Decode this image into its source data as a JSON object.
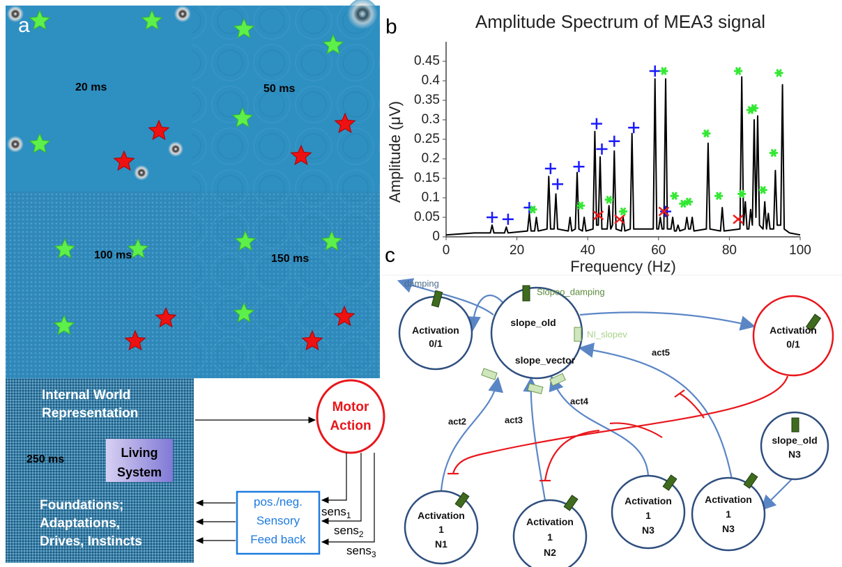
{
  "chart_data": {
    "type": "line",
    "panel_label": "b",
    "title": "Amplitude Spectrum of MEA3 signal",
    "xlabel": "Frequency (Hz)",
    "ylabel": "Amplitude (μV)",
    "xlim": [
      0,
      100
    ],
    "ylim": [
      0,
      0.5
    ],
    "xticks": [
      0,
      20,
      40,
      60,
      80,
      100
    ],
    "yticks": [
      0,
      0.05,
      0.1,
      0.15,
      0.2,
      0.25,
      0.3,
      0.35,
      0.4,
      0.45
    ],
    "x": [
      0,
      8,
      12.5,
      13,
      13.5,
      16.5,
      17,
      17.5,
      23,
      23.5,
      24,
      25,
      25.5,
      26,
      28.5,
      29,
      29.5,
      30.5,
      31,
      31.5,
      34.5,
      35,
      35.5,
      36.5,
      37,
      37.5,
      38.5,
      39,
      39.5,
      41.5,
      42,
      42.5,
      43,
      43.5,
      44,
      45.5,
      46,
      46.5,
      47,
      47.5,
      48,
      49.5,
      50,
      50.5,
      52,
      52.5,
      53,
      58.5,
      59,
      59.5,
      60,
      60.5,
      61,
      61.5,
      62,
      62.5,
      63.5,
      64,
      64.5,
      65,
      65.5,
      66,
      67.5,
      68,
      68.5,
      69,
      69.5,
      70,
      73.5,
      74,
      74.5,
      77.5,
      78,
      78.5,
      83,
      83.5,
      84,
      84.5,
      85,
      85.5,
      86,
      86.5,
      87,
      87.5,
      88,
      88.5,
      89.5,
      90,
      90.5,
      91,
      91.5,
      92.5,
      93,
      93.5,
      94.5,
      95,
      95.5,
      97,
      100
    ],
    "series": [
      {
        "color": "#000000",
        "values": [
          0.005,
          0.01,
          0.01,
          0.03,
          0.01,
          0.01,
          0.025,
          0.01,
          0.015,
          0.06,
          0.015,
          0.015,
          0.05,
          0.015,
          0.02,
          0.155,
          0.02,
          0.02,
          0.11,
          0.02,
          0.015,
          0.05,
          0.015,
          0.02,
          0.165,
          0.02,
          0.015,
          0.05,
          0.015,
          0.02,
          0.27,
          0.03,
          0.03,
          0.205,
          0.02,
          0.02,
          0.08,
          0.02,
          0.03,
          0.22,
          0.02,
          0.015,
          0.05,
          0.015,
          0.02,
          0.265,
          0.02,
          0.02,
          0.405,
          0.02,
          0.02,
          0.05,
          0.02,
          0.02,
          0.405,
          0.02,
          0.02,
          0.05,
          0.015,
          0.015,
          0.03,
          0.015,
          0.02,
          0.05,
          0.02,
          0.02,
          0.05,
          0.015,
          0.02,
          0.24,
          0.02,
          0.015,
          0.075,
          0.015,
          0.02,
          0.41,
          0.03,
          0.09,
          0.02,
          0.02,
          0.07,
          0.03,
          0.3,
          0.05,
          0.31,
          0.03,
          0.02,
          0.09,
          0.02,
          0.06,
          0.02,
          0.02,
          0.17,
          0.03,
          0.03,
          0.39,
          0.02,
          0.01,
          0.005
        ]
      }
    ],
    "markers": [
      {
        "marker": "+",
        "color": "#1a1aff",
        "x": [
          13,
          17.5,
          23.5,
          29.5,
          31.5,
          37.5,
          42.5,
          44,
          47.5,
          53,
          59,
          62
        ],
        "y": [
          0.05,
          0.045,
          0.075,
          0.175,
          0.135,
          0.18,
          0.29,
          0.225,
          0.245,
          0.28,
          0.425,
          0.065
        ]
      },
      {
        "marker": "*",
        "color": "#33e833",
        "x": [
          24.5,
          38,
          46,
          50,
          61.5,
          64.5,
          67,
          68.5,
          73.5,
          77,
          82.5,
          83.5,
          86,
          87,
          89.5,
          92.5,
          94
        ],
        "y": [
          0.07,
          0.08,
          0.095,
          0.065,
          0.425,
          0.105,
          0.085,
          0.09,
          0.265,
          0.105,
          0.425,
          0.11,
          0.325,
          0.33,
          0.12,
          0.215,
          0.42
        ]
      },
      {
        "marker": "x",
        "color": "#ee1c1c",
        "x": [
          43,
          49,
          61.5,
          82.5
        ],
        "y": [
          0.055,
          0.045,
          0.065,
          0.045
        ]
      }
    ]
  },
  "panel_a": {
    "label": "a",
    "frames": [
      "20 ms",
      "50 ms",
      "100 ms",
      "150 ms",
      "250 ms"
    ],
    "internal_world": [
      "Internal World",
      "Representation"
    ],
    "living_system": [
      "Living",
      "System"
    ],
    "foundations": [
      "Foundations;",
      "Adaptations,",
      "Drives, Instincts"
    ],
    "motor_action": [
      "Motor",
      "Action"
    ],
    "sensory_feedback": [
      "pos./neg.",
      "Sensory",
      "Feed back"
    ],
    "sens": [
      {
        "text": "sens",
        "sub": "1"
      },
      {
        "text": "sens",
        "sub": "2"
      },
      {
        "text": "sens",
        "sub": "3"
      }
    ]
  },
  "panel_c": {
    "label": "c",
    "edges": {
      "damping": "damping",
      "slopeo_damping": "Slopeo_damping",
      "ni_slopev": "NI_slopev",
      "act2": "act2",
      "act3": "act3",
      "act4": "act4",
      "act5": "act5"
    },
    "nodes": [
      [
        "Activation",
        "0/1"
      ],
      [
        "slope_old",
        "slope_vector"
      ],
      [
        "Activation",
        "0/1"
      ],
      [
        "slope_old",
        "N3"
      ],
      [
        "Activation",
        "1",
        "N1"
      ],
      [
        "Activation",
        "1",
        "N2"
      ],
      [
        "Activation",
        "1",
        "N3"
      ],
      [
        "Activation",
        "1",
        "N3"
      ]
    ]
  }
}
